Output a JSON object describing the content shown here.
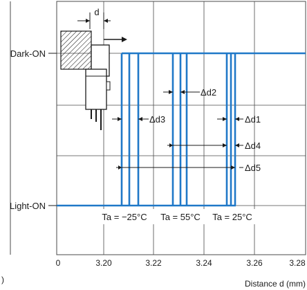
{
  "y_levels": {
    "dark_on": "Dark-ON",
    "light_on": "Light-ON"
  },
  "x_ticks": [
    "0",
    "3.20",
    "3.22",
    "3.24",
    "3.26",
    "3.28"
  ],
  "x_axis_label": "Distance d (mm)",
  "left_partial_label": ")",
  "dimension_labels": {
    "d": "d",
    "d1": "Δd1",
    "d2": "Δd2",
    "d3": "Δd3",
    "d4": "Δd4",
    "d5": "Δd5"
  },
  "temperature_labels": [
    "Ta = −25°C",
    "Ta = 55°C",
    "Ta = 25°C"
  ],
  "colors": {
    "trace": "#1f78c8",
    "grid": "#4a4a4a",
    "ink": "#1a1a1a"
  }
}
